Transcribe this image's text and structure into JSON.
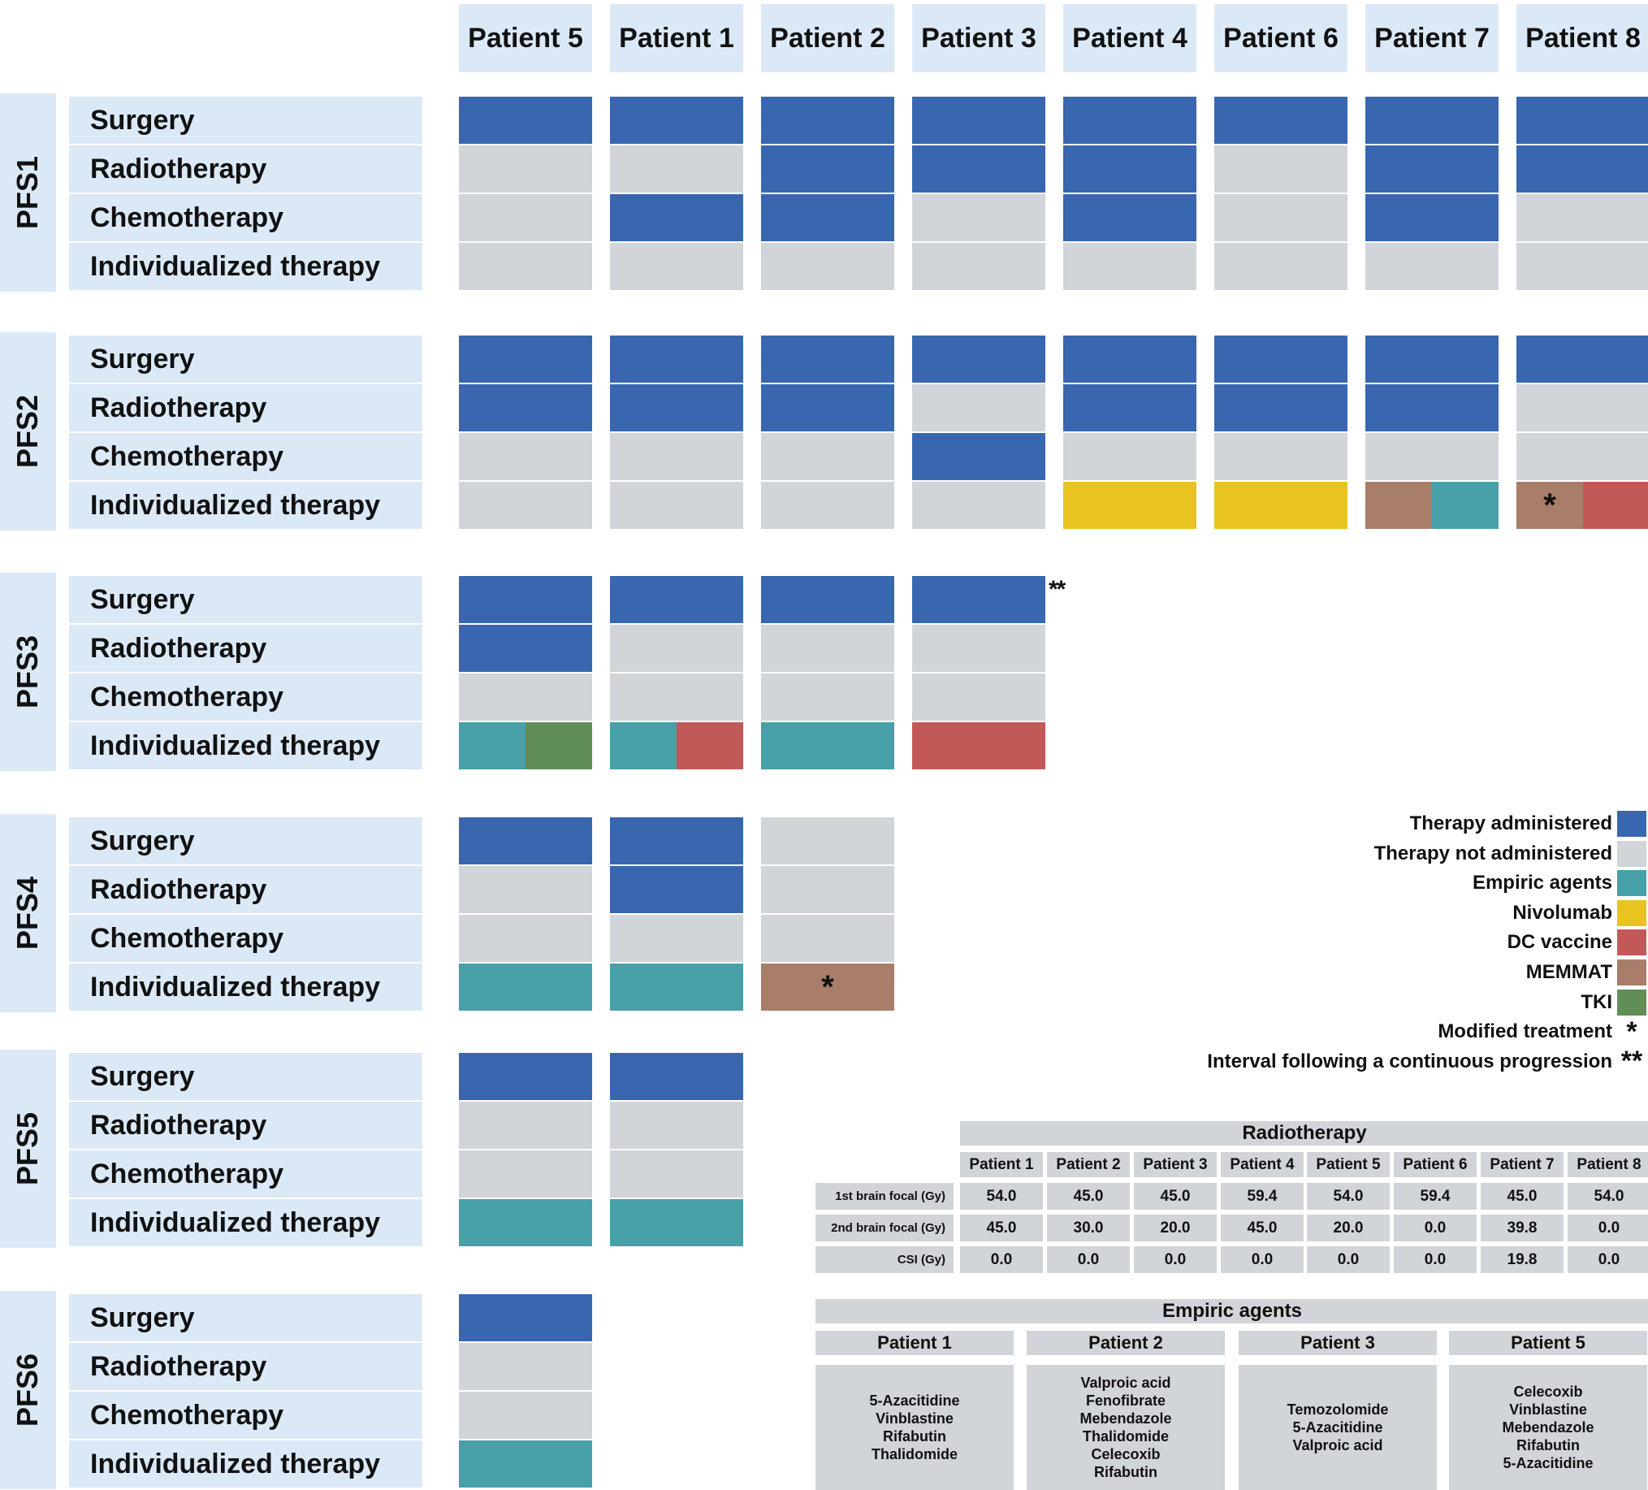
{
  "patients": [
    "Patient 5",
    "Patient 1",
    "Patient 2",
    "Patient 3",
    "Patient 4",
    "Patient 6",
    "Patient 7",
    "Patient 8"
  ],
  "therapy_rows": [
    "Surgery",
    "Radiotherapy",
    "Chemotherapy",
    "Individualized therapy"
  ],
  "colors": {
    "administered": "#3867b0",
    "not_administered": "#d1d4d8",
    "empiric": "#48a0a8",
    "nivolumab": "#e9c420",
    "dc_vaccine": "#c35859",
    "memmat": "#a87d6a",
    "tki": "#618d56"
  },
  "pfs": [
    {
      "label": "PFS1",
      "patients": [
        [
          "A",
          "N",
          "N",
          "N"
        ],
        [
          "A",
          "N",
          "A",
          "N"
        ],
        [
          "A",
          "A",
          "A",
          "N"
        ],
        [
          "A",
          "A",
          "N",
          "N"
        ],
        [
          "A",
          "A",
          "A",
          "N"
        ],
        [
          "A",
          "N",
          "N",
          "N"
        ],
        [
          "A",
          "A",
          "A",
          "N"
        ],
        [
          "A",
          "A",
          "N",
          "N"
        ]
      ]
    },
    {
      "label": "PFS2",
      "patients": [
        [
          "A",
          "A",
          "N",
          "N"
        ],
        [
          "A",
          "A",
          "N",
          "N"
        ],
        [
          "A",
          "A",
          "N",
          "N"
        ],
        [
          "A",
          "N",
          "A",
          "N"
        ],
        [
          "A",
          "A",
          "N",
          "nivolumab"
        ],
        [
          "A",
          "A",
          "N",
          "nivolumab"
        ],
        [
          "A",
          "A",
          "N",
          "memmat+empiric"
        ],
        [
          "A",
          "N",
          "N",
          "memmat*+dc_vaccine"
        ]
      ]
    },
    {
      "label": "PFS3",
      "patients": [
        [
          "A",
          "A",
          "N",
          "empiric+tki"
        ],
        [
          "A",
          "N",
          "N",
          "empiric+dc_vaccine"
        ],
        [
          "A",
          "N",
          "N",
          "empiric"
        ],
        [
          "A",
          "N",
          "N",
          "dc_vaccine"
        ]
      ],
      "note": "**"
    },
    {
      "label": "PFS4",
      "patients": [
        [
          "A",
          "N",
          "N",
          "empiric"
        ],
        [
          "A",
          "A",
          "N",
          "empiric"
        ],
        [
          "N",
          "N",
          "N",
          "memmat*"
        ]
      ]
    },
    {
      "label": "PFS5",
      "patients": [
        [
          "A",
          "N",
          "N",
          "empiric"
        ],
        [
          "A",
          "N",
          "N",
          "empiric"
        ]
      ]
    },
    {
      "label": "PFS6",
      "patients": [
        [
          "A",
          "N",
          "N",
          "empiric"
        ]
      ]
    }
  ],
  "legend": [
    {
      "label": "Therapy administered",
      "color": "#3867b0"
    },
    {
      "label": "Therapy not administered",
      "color": "#d1d4d8"
    },
    {
      "label": "Empiric agents",
      "color": "#48a0a8"
    },
    {
      "label": "Nivolumab",
      "color": "#e9c420"
    },
    {
      "label": "DC vaccine",
      "color": "#c35859"
    },
    {
      "label": "MEMMAT",
      "color": "#a87d6a"
    },
    {
      "label": "TKI",
      "color": "#618d56"
    },
    {
      "label": "Modified treatment",
      "mark": "*"
    },
    {
      "label": "Interval following a continuous progression",
      "mark": "**"
    }
  ],
  "radiotherapy_table": {
    "title": "Radiotherapy",
    "columns": [
      "Patient 1",
      "Patient 2",
      "Patient 3",
      "Patient 4",
      "Patient 5",
      "Patient 6",
      "Patient 7",
      "Patient 8"
    ],
    "rows": [
      {
        "label": "1st brain focal (Gy)",
        "values": [
          "54.0",
          "45.0",
          "45.0",
          "59.4",
          "54.0",
          "59.4",
          "45.0",
          "54.0"
        ]
      },
      {
        "label": "2nd brain focal (Gy)",
        "values": [
          "45.0",
          "30.0",
          "20.0",
          "45.0",
          "20.0",
          "0.0",
          "39.8",
          "0.0"
        ]
      },
      {
        "label": "CSI (Gy)",
        "values": [
          "0.0",
          "0.0",
          "0.0",
          "0.0",
          "0.0",
          "0.0",
          "19.8",
          "0.0"
        ]
      }
    ]
  },
  "empiric_table": {
    "title": "Empiric agents",
    "columns": [
      {
        "patient": "Patient 1",
        "agents": [
          "5-Azacitidine",
          "Vinblastine",
          "Rifabutin",
          "Thalidomide"
        ]
      },
      {
        "patient": "Patient 2",
        "agents": [
          "Valproic acid",
          "Fenofibrate",
          "Mebendazole",
          "Thalidomide",
          "Celecoxib",
          "Rifabutin"
        ]
      },
      {
        "patient": "Patient 3",
        "agents": [
          "Temozolomide",
          "5-Azacitidine",
          "Valproic acid"
        ]
      },
      {
        "patient": "Patient 5",
        "agents": [
          "Celecoxib",
          "Vinblastine",
          "Mebendazole",
          "Rifabutin",
          "5-Azacitidine"
        ]
      }
    ]
  }
}
